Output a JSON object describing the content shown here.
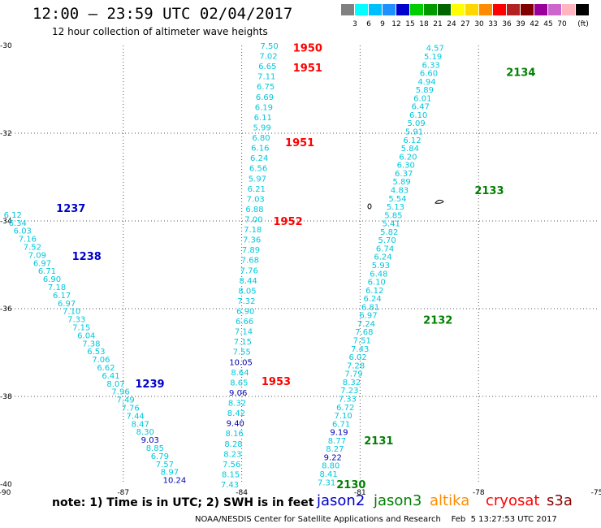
{
  "header": {
    "title": "12:00 – 23:59 UTC 02/04/2017",
    "subtitle": "12 hour collection of altimeter wave heights"
  },
  "color_scale": {
    "unit": "(ft)",
    "bins": [
      {
        "label": "",
        "color": "#808080"
      },
      {
        "label": "3",
        "color": "#00ffff"
      },
      {
        "label": "6",
        "color": "#00bfff"
      },
      {
        "label": "9",
        "color": "#1e90ff"
      },
      {
        "label": "12",
        "color": "#0000cd"
      },
      {
        "label": "15",
        "color": "#00cd00"
      },
      {
        "label": "18",
        "color": "#009900"
      },
      {
        "label": "21",
        "color": "#006400"
      },
      {
        "label": "24",
        "color": "#ffff00"
      },
      {
        "label": "27",
        "color": "#ffd700"
      },
      {
        "label": "30",
        "color": "#ff8c00"
      },
      {
        "label": "33",
        "color": "#ff0000"
      },
      {
        "label": "36",
        "color": "#b22222"
      },
      {
        "label": "39",
        "color": "#800000"
      },
      {
        "label": "42",
        "color": "#990099"
      },
      {
        "label": "45",
        "color": "#cc66cc"
      },
      {
        "label": "70",
        "color": "#ffb6c1"
      },
      {
        "label": "",
        "color": "#000000"
      }
    ]
  },
  "chart_data": {
    "type": "scatter",
    "title": "12:00 – 23:59 UTC 02/04/2017",
    "subtitle": "12 hour collection of altimeter wave heights",
    "xlim": [
      -90,
      -75
    ],
    "ylim": [
      -40,
      -30
    ],
    "x_ticks": [
      "-90",
      "-87",
      "-84",
      "-81",
      "-78",
      "-75"
    ],
    "y_ticks": [
      "-30",
      "-32",
      "-34",
      "-36",
      "-38",
      "-40"
    ],
    "grid": true,
    "series": [
      {
        "name": "jason2",
        "color": "#0000cd",
        "tracks": [
          {
            "start": [
              -89.8,
              -33.85
            ],
            "end": [
              -85.7,
              -39.9
            ],
            "values": [
              "6.12",
              "6.34",
              "6.03",
              "7.16",
              "7.52",
              "7.09",
              "6.97",
              "6.71",
              "6.90",
              "7.18",
              "6.17",
              "6.97",
              "7.10",
              "7.33",
              "7.15",
              "6.04",
              "7.38",
              "6.53",
              "7.06",
              "6.62",
              "6.41",
              "8.07",
              "7.96",
              "7.49",
              "7.76",
              "7.44",
              "8.47",
              "8.30",
              "9.03",
              "8.85",
              "6.79",
              "7.57",
              "8.97",
              "10.24"
            ],
            "highlight": [
              "9.03",
              "10.24"
            ]
          }
        ],
        "time_labels": [
          {
            "text": "1237",
            "x": -88.7,
            "y": -33.7
          },
          {
            "text": "1238",
            "x": -88.3,
            "y": -34.8
          },
          {
            "text": "1239",
            "x": -86.7,
            "y": -37.7
          }
        ]
      },
      {
        "name": "jason3",
        "color": "#008000",
        "tracks": [
          {
            "start": [
              -79.1,
              -30.05
            ],
            "end": [
              -81.85,
              -39.95
            ],
            "values": [
              "4.57",
              "5.19",
              "6.33",
              "6.60",
              "4.94",
              "5.89",
              "6.01",
              "6.47",
              "6.10",
              "5.09",
              "5.91",
              "6.12",
              "5.84",
              "6.20",
              "6.30",
              "6.37",
              "5.89",
              "4.83",
              "5.54",
              "5.13",
              "5.85",
              "5.41",
              "5.82",
              "5.70",
              "6.74",
              "6.24",
              "5.93",
              "6.48",
              "6.10",
              "6.12",
              "6.24",
              "6.81",
              "6.97",
              "7.24",
              "7.68",
              "7.51",
              "7.43",
              "6.02",
              "7.28",
              "7.79",
              "8.32",
              "7.23",
              "7.33",
              "6.72",
              "7.10",
              "6.71",
              "9.19",
              "8.77",
              "8.27",
              "9.22",
              "8.80",
              "8.41",
              "7.31"
            ],
            "highlight": [
              "9.19",
              "9.22"
            ]
          }
        ],
        "time_labels": [
          {
            "text": "2134",
            "x": -77.3,
            "y": -30.6
          },
          {
            "text": "2133",
            "x": -78.1,
            "y": -33.3
          },
          {
            "text": "2132",
            "x": -79.4,
            "y": -36.25
          },
          {
            "text": "2131",
            "x": -80.9,
            "y": -39.0
          },
          {
            "text": "2130",
            "x": -81.6,
            "y": -40.0
          }
        ]
      },
      {
        "name": "altika",
        "color": "#ff8c00",
        "tracks": [],
        "time_labels": []
      },
      {
        "name": "cryosat",
        "color": "#ff0000",
        "tracks": [
          {
            "start": [
              -83.3,
              -30.0
            ],
            "end": [
              -84.3,
              -40.0
            ],
            "values": [
              "7.50",
              "7.02",
              "6.65",
              "7.11",
              "6.75",
              "6.69",
              "6.19",
              "6.11",
              "5.99",
              "6.80",
              "6.16",
              "6.24",
              "6.56",
              "5.97",
              "6.21",
              "7.03",
              "6.88",
              "7.00",
              "7.18",
              "7.36",
              "7.89",
              "7.68",
              "7.76",
              "8.44",
              "8.05",
              "7.32",
              "6.90",
              "6.66",
              "7.14",
              "7.15",
              "7.55",
              "10.05",
              "8.64",
              "8.65",
              "9.06",
              "8.32",
              "8.42",
              "9.40",
              "8.16",
              "8.28",
              "8.23",
              "7.56",
              "8.15",
              "7.43"
            ],
            "highlight": [
              "10.05",
              "9.06",
              "9.40"
            ]
          }
        ],
        "time_labels": [
          {
            "text": "1950",
            "x": -82.7,
            "y": -30.05
          },
          {
            "text": "1951",
            "x": -82.7,
            "y": -30.5
          },
          {
            "text": "1951",
            "x": -82.9,
            "y": -32.2
          },
          {
            "text": "1952",
            "x": -83.2,
            "y": -34.0
          },
          {
            "text": "1953",
            "x": -83.5,
            "y": -37.65
          }
        ]
      },
      {
        "name": "s3a",
        "color": "#8b0000",
        "tracks": [],
        "time_labels": []
      }
    ]
  },
  "note": "note: 1) Time is in UTC; 2) SWH is in feet",
  "legend": [
    {
      "label": "jason2",
      "color": "#0000cd"
    },
    {
      "label": "jason3",
      "color": "#008000"
    },
    {
      "label": "altika",
      "color": "#ff8c00"
    },
    {
      "label": "cryosat",
      "color": "#ff0000"
    },
    {
      "label": "s3a",
      "color": "#8b0000"
    }
  ],
  "footer": "NOAA/NESDIS Center for Satellite Applications and Research    Feb  5 13:27:53 UTC 2017"
}
